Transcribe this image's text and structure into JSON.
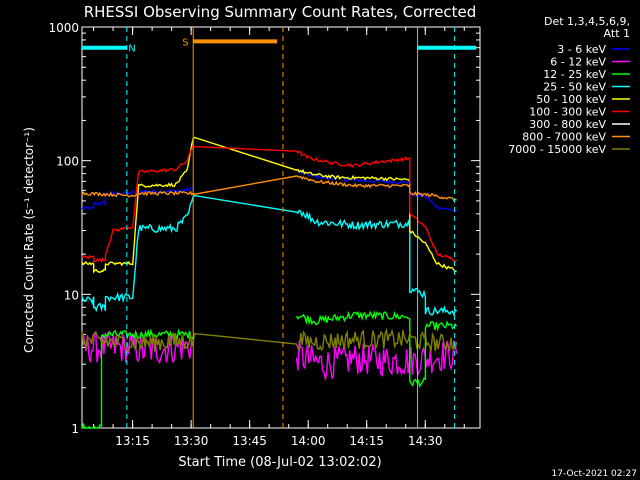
{
  "chart_data": {
    "type": "line",
    "title": "RHESSI Observing Summary Count Rates, Corrected",
    "xlabel": "Start Time (08-Jul-02 13:02:02)",
    "ylabel": "Corrected Count Rate (s⁻¹ detector⁻¹)",
    "yscale": "log",
    "xlim": [
      0,
      102
    ],
    "ylim": [
      1,
      1000
    ],
    "x_ticks": [
      {
        "t": 12.97,
        "label": "13:15"
      },
      {
        "t": 27.97,
        "label": "13:30"
      },
      {
        "t": 42.97,
        "label": "13:45"
      },
      {
        "t": 57.97,
        "label": "14:00"
      },
      {
        "t": 72.97,
        "label": "14:15"
      },
      {
        "t": 87.97,
        "label": "14:30"
      }
    ],
    "y_ticks": [
      {
        "v": 1,
        "label": "1"
      },
      {
        "v": 10,
        "label": "10"
      },
      {
        "v": 100,
        "label": "100"
      },
      {
        "v": 1000,
        "label": "1000"
      }
    ],
    "legend_header": [
      "Det 1,3,4,5,6,9,",
      "Att 1"
    ],
    "footer_date": "17-Oct-2021 02:27",
    "series": [
      {
        "name": "3 - 6 keV",
        "color": "#0000ff",
        "points": [
          [
            0,
            44
          ],
          [
            3,
            44
          ],
          [
            3.01,
            48
          ],
          [
            6,
            48
          ],
          [
            6.01,
            57
          ],
          [
            12,
            57
          ],
          [
            14.5,
            59
          ],
          [
            24,
            59
          ],
          [
            27.5,
            61
          ],
          [
            29,
            62
          ],
          [
            55,
            83
          ],
          [
            60,
            76
          ],
          [
            68,
            72
          ],
          [
            75,
            70
          ],
          [
            84,
            69
          ],
          [
            84.01,
            56
          ],
          [
            88,
            54
          ],
          [
            91,
            45
          ],
          [
            96,
            42
          ]
        ]
      },
      {
        "name": "6 - 12 keV",
        "color": "#ff00ff",
        "points": [
          [
            0,
            4
          ],
          [
            13,
            4
          ],
          [
            16,
            3.8
          ],
          [
            28,
            4.1
          ],
          [
            29,
            4.2
          ],
          [
            55,
            3.5
          ],
          [
            62,
            3.0
          ],
          [
            70,
            3.3
          ],
          [
            78,
            3.2
          ],
          [
            85,
            3.2
          ],
          [
            90,
            3.4
          ],
          [
            96,
            3.6
          ]
        ]
      },
      {
        "name": "12 - 25 keV",
        "color": "#00ff00",
        "points": [
          [
            0,
            1
          ],
          [
            5,
            1
          ],
          [
            5.01,
            5
          ],
          [
            13,
            5
          ],
          [
            14.5,
            5
          ],
          [
            29,
            5
          ],
          [
            55,
            7
          ],
          [
            60,
            6.3
          ],
          [
            70,
            7
          ],
          [
            84,
            6.8
          ],
          [
            84.01,
            2.2
          ],
          [
            88,
            2.2
          ],
          [
            88.01,
            5.8
          ],
          [
            96,
            5.8
          ]
        ]
      },
      {
        "name": "25 - 50 keV",
        "color": "#00ffff",
        "points": [
          [
            0,
            9
          ],
          [
            3,
            9
          ],
          [
            3.01,
            8
          ],
          [
            6,
            8
          ],
          [
            6.01,
            9.5
          ],
          [
            13,
            9.5
          ],
          [
            14.5,
            31
          ],
          [
            24,
            31
          ],
          [
            27,
            38
          ],
          [
            28.5,
            52
          ],
          [
            55,
            44
          ],
          [
            57,
            40
          ],
          [
            60,
            35
          ],
          [
            70,
            33
          ],
          [
            84,
            34
          ],
          [
            84.01,
            11
          ],
          [
            88,
            10
          ],
          [
            88.01,
            7.5
          ],
          [
            96,
            7.5
          ]
        ]
      },
      {
        "name": "50 - 100 keV",
        "color": "#ffff00",
        "points": [
          [
            0,
            17
          ],
          [
            3,
            17
          ],
          [
            3.01,
            15
          ],
          [
            6,
            15
          ],
          [
            6.01,
            17
          ],
          [
            13,
            17
          ],
          [
            14.5,
            65
          ],
          [
            24,
            66
          ],
          [
            27,
            85
          ],
          [
            28.5,
            150
          ],
          [
            55,
            86
          ],
          [
            58,
            80
          ],
          [
            65,
            75
          ],
          [
            75,
            74
          ],
          [
            84,
            72
          ],
          [
            84.01,
            30
          ],
          [
            88,
            24
          ],
          [
            91,
            17
          ],
          [
            96,
            15
          ]
        ]
      },
      {
        "name": "100 - 300 keV",
        "color": "#ff0000",
        "points": [
          [
            0,
            19
          ],
          [
            3,
            19
          ],
          [
            3.01,
            18
          ],
          [
            6,
            18
          ],
          [
            6.01,
            20
          ],
          [
            8,
            30
          ],
          [
            13,
            32
          ],
          [
            14.5,
            82
          ],
          [
            24,
            86
          ],
          [
            27,
            100
          ],
          [
            28.5,
            130
          ],
          [
            55,
            118
          ],
          [
            58,
            105
          ],
          [
            65,
            95
          ],
          [
            70,
            92
          ],
          [
            75,
            97
          ],
          [
            84,
            104
          ],
          [
            84.01,
            40
          ],
          [
            88,
            32
          ],
          [
            91,
            20
          ],
          [
            96,
            18
          ]
        ]
      },
      {
        "name": "300 - 800 keV",
        "color": "#ffffff",
        "points": []
      },
      {
        "name": "800 - 7000 keV",
        "color": "#ff9000",
        "points": [
          [
            0,
            57
          ],
          [
            13,
            55
          ],
          [
            14.5,
            57
          ],
          [
            28.5,
            57
          ],
          [
            55,
            77
          ],
          [
            60,
            70
          ],
          [
            70,
            65
          ],
          [
            84,
            65
          ],
          [
            84.01,
            57
          ],
          [
            90,
            55
          ],
          [
            96,
            51
          ]
        ]
      },
      {
        "name": "7000 - 15000 keV",
        "color": "#808000",
        "points": [
          [
            0,
            4.5
          ],
          [
            13,
            4.3
          ],
          [
            28.5,
            4.5
          ],
          [
            55,
            4.5
          ],
          [
            60,
            4.4
          ],
          [
            70,
            4.6
          ],
          [
            84,
            4.6
          ],
          [
            88,
            4.4
          ],
          [
            92,
            4.3
          ],
          [
            96,
            4.4
          ]
        ]
      }
    ],
    "flags": [
      {
        "label": "N",
        "color": "#00ffff",
        "bar": [
          0,
          11.5
        ],
        "bar_level": 700,
        "start": 11.5,
        "end": 86,
        "end_bar": [
          86,
          101
        ],
        "label_x": 12.8,
        "start_dashed": true
      },
      {
        "label": "S",
        "color": "#ff9000",
        "bar": [
          28.5,
          50
        ],
        "bar_level": 780,
        "start": 28.5,
        "end": 51.5,
        "label_x": 26.5,
        "start_dashed": false
      }
    ],
    "gap": [
      29,
      55
    ],
    "end_marker_x": 95.5
  }
}
